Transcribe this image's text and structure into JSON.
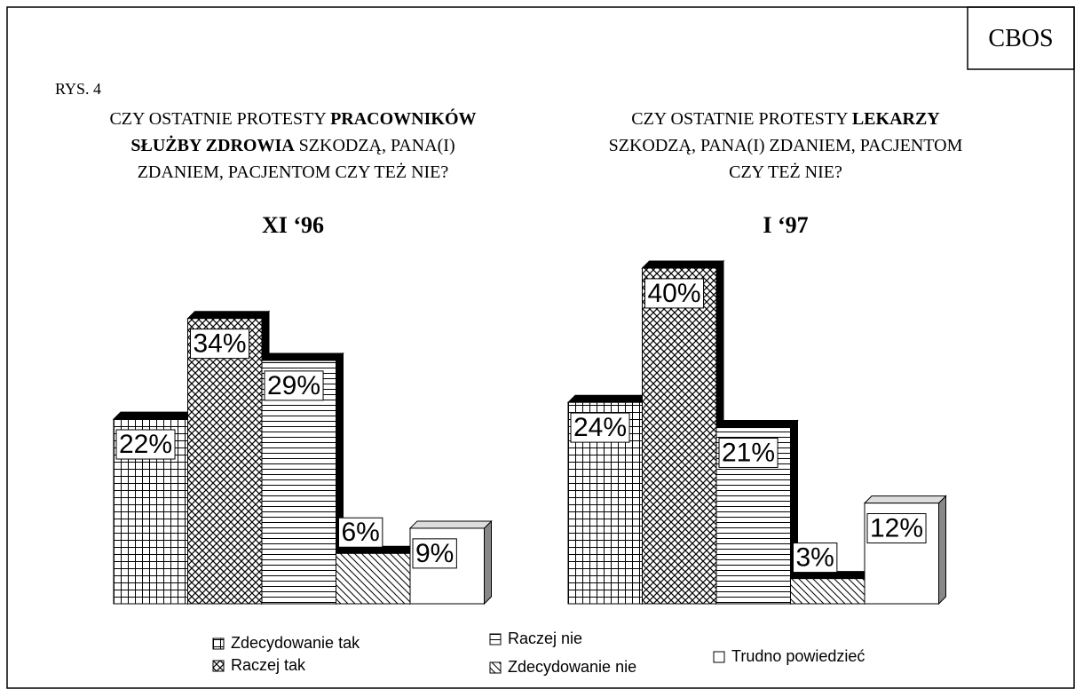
{
  "header": {
    "brand": "CBOS",
    "figure": "RYS. 4"
  },
  "chart_data": [
    {
      "type": "bar",
      "title": [
        [
          {
            "text": "CZY OSTATNIE PROTESTY "
          },
          {
            "text": "PRACOWNIKÓW",
            "bold": true
          }
        ],
        [
          {
            "text": "SŁUŻBY ZDROWIA",
            "bold": true
          },
          {
            "text": " SZKODZĄ, PANA(I)"
          }
        ],
        [
          {
            "text": "ZDANIEM, PACJENTOM CZY TEŻ NIE?"
          }
        ]
      ],
      "subtitle": "XI ‘96",
      "categories": [
        "Zdecydowanie tak",
        "Raczej tak",
        "Raczej nie",
        "Zdecydowanie nie",
        "Trudno powiedzieć"
      ],
      "values": [
        22,
        34,
        29,
        6,
        9
      ],
      "value_labels": [
        "22%",
        "34%",
        "29%",
        "6%",
        "9%"
      ],
      "patterns": [
        "grid",
        "crosshatch",
        "horizontal",
        "diagonal",
        "none"
      ]
    },
    {
      "type": "bar",
      "title": [
        [
          {
            "text": "CZY OSTATNIE PROTESTY "
          },
          {
            "text": "LEKARZY",
            "bold": true
          }
        ],
        [
          {
            "text": "SZKODZĄ, PANA(I) ZDANIEM, PACJENTOM"
          }
        ],
        [
          {
            "text": "CZY TEŻ NIE?"
          }
        ]
      ],
      "subtitle": "I ‘97",
      "categories": [
        "Zdecydowanie tak",
        "Raczej tak",
        "Raczej nie",
        "Zdecydowanie nie",
        "Trudno powiedzieć"
      ],
      "values": [
        24,
        40,
        21,
        3,
        12
      ],
      "value_labels": [
        "24%",
        "40%",
        "21%",
        "3%",
        "12%"
      ],
      "patterns": [
        "grid",
        "crosshatch",
        "horizontal",
        "diagonal",
        "none"
      ]
    }
  ]
}
